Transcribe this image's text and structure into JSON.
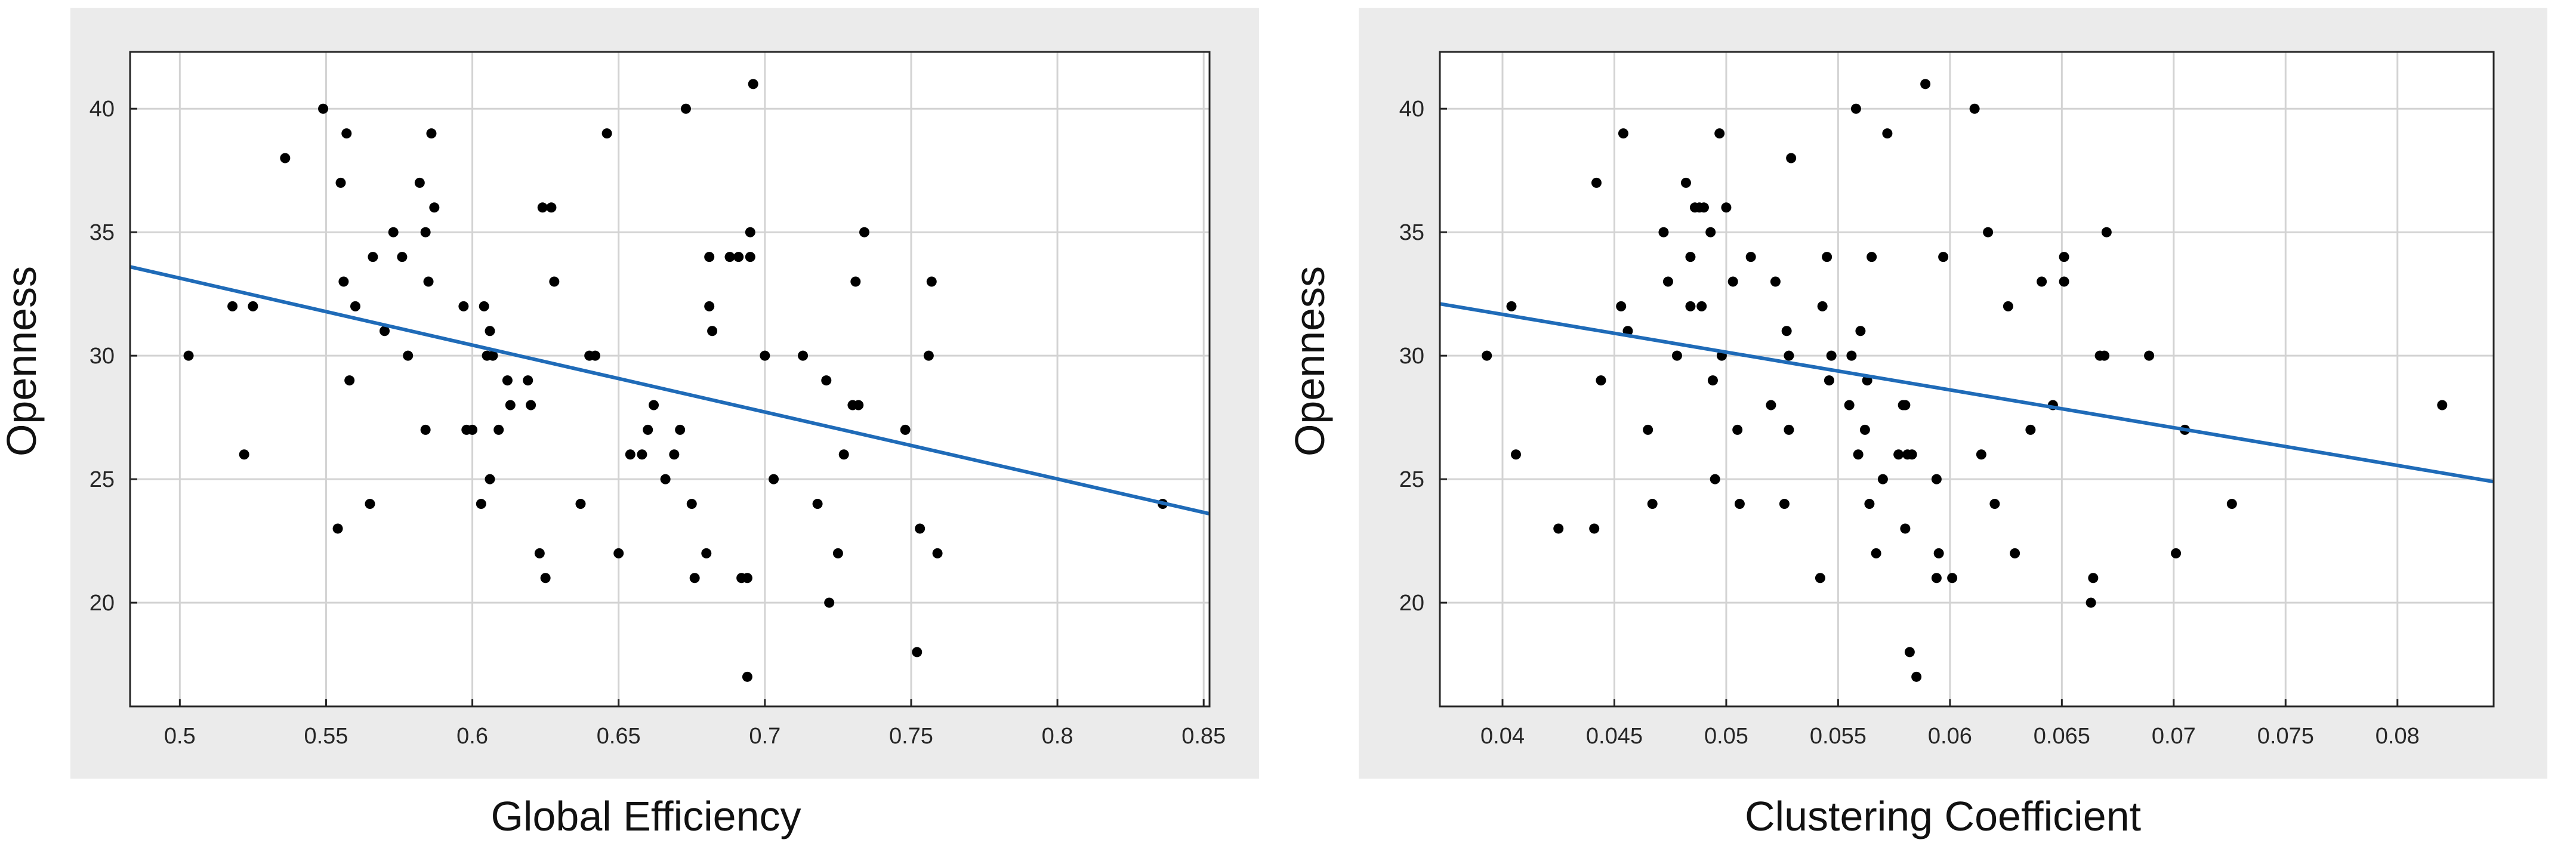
{
  "colors": {
    "figure_background": "#ebebeb",
    "plot_background": "#ffffff",
    "grid": "#d3d3d3",
    "axis": "#262626",
    "point": "#000000",
    "fit_line": "#1f6bb8"
  },
  "chart_data": [
    {
      "type": "scatter",
      "title": "",
      "xlabel": "Global Efficiency",
      "ylabel": "Openness",
      "xlim": [
        0.483,
        0.852
      ],
      "ylim": [
        15.8,
        42.3
      ],
      "xticks": [
        0.5,
        0.55,
        0.6,
        0.65,
        0.7,
        0.75,
        0.8,
        0.85
      ],
      "xtick_labels": [
        "0.5",
        "0.55",
        "0.6",
        "0.65",
        "0.7",
        "0.75",
        "0.8",
        "0.85"
      ],
      "yticks": [
        20,
        25,
        30,
        35,
        40
      ],
      "ytick_labels": [
        "20",
        "25",
        "30",
        "35",
        "40"
      ],
      "grid": true,
      "points": [
        [
          0.503,
          30
        ],
        [
          0.518,
          32
        ],
        [
          0.522,
          26
        ],
        [
          0.525,
          32
        ],
        [
          0.536,
          38
        ],
        [
          0.549,
          40
        ],
        [
          0.554,
          23
        ],
        [
          0.555,
          37
        ],
        [
          0.556,
          33
        ],
        [
          0.557,
          39
        ],
        [
          0.558,
          29
        ],
        [
          0.56,
          32
        ],
        [
          0.565,
          24
        ],
        [
          0.566,
          34
        ],
        [
          0.57,
          31
        ],
        [
          0.573,
          35
        ],
        [
          0.576,
          34
        ],
        [
          0.578,
          30
        ],
        [
          0.582,
          37
        ],
        [
          0.584,
          27
        ],
        [
          0.584,
          35
        ],
        [
          0.585,
          33
        ],
        [
          0.586,
          39
        ],
        [
          0.587,
          36
        ],
        [
          0.597,
          32
        ],
        [
          0.598,
          27
        ],
        [
          0.6,
          27
        ],
        [
          0.603,
          24
        ],
        [
          0.604,
          32
        ],
        [
          0.605,
          30
        ],
        [
          0.606,
          31
        ],
        [
          0.606,
          25
        ],
        [
          0.607,
          30
        ],
        [
          0.609,
          27
        ],
        [
          0.612,
          29
        ],
        [
          0.613,
          28
        ],
        [
          0.619,
          29
        ],
        [
          0.62,
          28
        ],
        [
          0.623,
          22
        ],
        [
          0.624,
          36
        ],
        [
          0.625,
          21
        ],
        [
          0.627,
          36
        ],
        [
          0.628,
          33
        ],
        [
          0.637,
          24
        ],
        [
          0.64,
          30
        ],
        [
          0.642,
          30
        ],
        [
          0.646,
          39
        ],
        [
          0.65,
          22
        ],
        [
          0.654,
          26
        ],
        [
          0.658,
          26
        ],
        [
          0.66,
          27
        ],
        [
          0.662,
          28
        ],
        [
          0.666,
          25
        ],
        [
          0.669,
          26
        ],
        [
          0.671,
          27
        ],
        [
          0.673,
          40
        ],
        [
          0.675,
          24
        ],
        [
          0.676,
          21
        ],
        [
          0.68,
          22
        ],
        [
          0.681,
          32
        ],
        [
          0.681,
          34
        ],
        [
          0.682,
          31
        ],
        [
          0.688,
          34
        ],
        [
          0.691,
          34
        ],
        [
          0.692,
          21
        ],
        [
          0.694,
          17
        ],
        [
          0.694,
          21
        ],
        [
          0.695,
          34
        ],
        [
          0.695,
          35
        ],
        [
          0.696,
          41
        ],
        [
          0.7,
          30
        ],
        [
          0.703,
          25
        ],
        [
          0.713,
          30
        ],
        [
          0.718,
          24
        ],
        [
          0.721,
          29
        ],
        [
          0.722,
          20
        ],
        [
          0.725,
          22
        ],
        [
          0.727,
          26
        ],
        [
          0.73,
          28
        ],
        [
          0.731,
          33
        ],
        [
          0.732,
          28
        ],
        [
          0.734,
          35
        ],
        [
          0.748,
          27
        ],
        [
          0.752,
          18
        ],
        [
          0.753,
          23
        ],
        [
          0.756,
          30
        ],
        [
          0.757,
          33
        ],
        [
          0.759,
          22
        ],
        [
          0.836,
          24
        ]
      ],
      "fit_line": {
        "x": [
          0.483,
          0.852
        ],
        "y": [
          33.6,
          23.6
        ]
      }
    },
    {
      "type": "scatter",
      "title": "",
      "xlabel": "Clustering Coefficient",
      "ylabel": "Openness",
      "xlim": [
        0.0372,
        0.0843
      ],
      "ylim": [
        15.8,
        42.3
      ],
      "xticks": [
        0.04,
        0.045,
        0.05,
        0.055,
        0.06,
        0.065,
        0.07,
        0.075,
        0.08
      ],
      "xtick_labels": [
        "0.04",
        "0.045",
        "0.05",
        "0.055",
        "0.06",
        "0.065",
        "0.07",
        "0.075",
        "0.08"
      ],
      "yticks": [
        20,
        25,
        30,
        35,
        40
      ],
      "ytick_labels": [
        "20",
        "25",
        "30",
        "35",
        "40"
      ],
      "grid": true,
      "points": [
        [
          0.0393,
          30
        ],
        [
          0.0404,
          32
        ],
        [
          0.0406,
          26
        ],
        [
          0.0425,
          23
        ],
        [
          0.0441,
          23
        ],
        [
          0.0442,
          37
        ],
        [
          0.0444,
          29
        ],
        [
          0.0453,
          32
        ],
        [
          0.0454,
          39
        ],
        [
          0.0456,
          31
        ],
        [
          0.0465,
          27
        ],
        [
          0.0467,
          24
        ],
        [
          0.0472,
          35
        ],
        [
          0.0474,
          33
        ],
        [
          0.0478,
          30
        ],
        [
          0.0482,
          37
        ],
        [
          0.0484,
          34
        ],
        [
          0.0484,
          32
        ],
        [
          0.0486,
          36
        ],
        [
          0.0488,
          36
        ],
        [
          0.0489,
          32
        ],
        [
          0.049,
          36
        ],
        [
          0.0493,
          35
        ],
        [
          0.0494,
          29
        ],
        [
          0.0495,
          25
        ],
        [
          0.0497,
          39
        ],
        [
          0.0498,
          30
        ],
        [
          0.05,
          36
        ],
        [
          0.0503,
          33
        ],
        [
          0.0505,
          27
        ],
        [
          0.0506,
          24
        ],
        [
          0.0511,
          34
        ],
        [
          0.052,
          28
        ],
        [
          0.0522,
          33
        ],
        [
          0.0526,
          24
        ],
        [
          0.0527,
          31
        ],
        [
          0.0528,
          30
        ],
        [
          0.0528,
          27
        ],
        [
          0.0529,
          38
        ],
        [
          0.0542,
          21
        ],
        [
          0.0543,
          32
        ],
        [
          0.0545,
          34
        ],
        [
          0.0546,
          29
        ],
        [
          0.0547,
          30
        ],
        [
          0.0555,
          28
        ],
        [
          0.0556,
          30
        ],
        [
          0.0558,
          40
        ],
        [
          0.0559,
          26
        ],
        [
          0.056,
          31
        ],
        [
          0.0562,
          27
        ],
        [
          0.0563,
          29
        ],
        [
          0.0564,
          24
        ],
        [
          0.0565,
          34
        ],
        [
          0.0567,
          22
        ],
        [
          0.057,
          25
        ],
        [
          0.0572,
          39
        ],
        [
          0.0577,
          26
        ],
        [
          0.0579,
          28
        ],
        [
          0.058,
          23
        ],
        [
          0.058,
          28
        ],
        [
          0.0581,
          26
        ],
        [
          0.0582,
          18
        ],
        [
          0.0583,
          26
        ],
        [
          0.0585,
          17
        ],
        [
          0.0589,
          41
        ],
        [
          0.0594,
          25
        ],
        [
          0.0594,
          21
        ],
        [
          0.0595,
          22
        ],
        [
          0.0597,
          34
        ],
        [
          0.0601,
          21
        ],
        [
          0.0611,
          40
        ],
        [
          0.0614,
          26
        ],
        [
          0.0617,
          35
        ],
        [
          0.062,
          24
        ],
        [
          0.0626,
          32
        ],
        [
          0.0629,
          22
        ],
        [
          0.0636,
          27
        ],
        [
          0.0641,
          33
        ],
        [
          0.0646,
          28
        ],
        [
          0.0651,
          34
        ],
        [
          0.0651,
          33
        ],
        [
          0.0663,
          20
        ],
        [
          0.0664,
          21
        ],
        [
          0.0667,
          30
        ],
        [
          0.0669,
          30
        ],
        [
          0.067,
          35
        ],
        [
          0.0689,
          30
        ],
        [
          0.0701,
          22
        ],
        [
          0.0705,
          27
        ],
        [
          0.0726,
          24
        ],
        [
          0.082,
          28
        ]
      ],
      "fit_line": {
        "x": [
          0.0372,
          0.0843
        ],
        "y": [
          32.1,
          24.9
        ]
      }
    }
  ]
}
